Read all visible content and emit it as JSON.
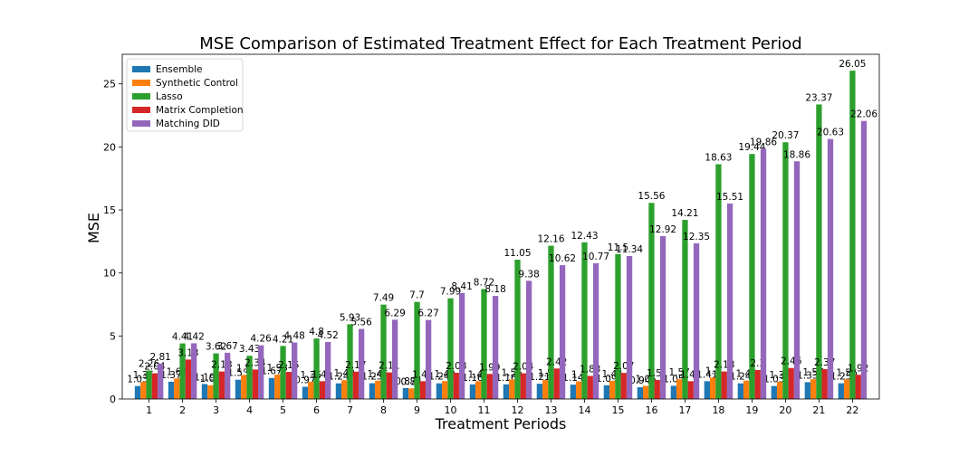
{
  "chart_data": {
    "type": "bar",
    "title": "MSE Comparison of Estimated Treatment Effect for Each Treatment Period",
    "xlabel": "Treatment Periods",
    "ylabel": "MSE",
    "ylim": [
      0,
      27.35
    ],
    "yticks": [
      0,
      5,
      10,
      15,
      20,
      25
    ],
    "grid": false,
    "legend_position": "top-left",
    "categories": [
      "1",
      "2",
      "3",
      "4",
      "5",
      "6",
      "7",
      "8",
      "9",
      "10",
      "11",
      "12",
      "13",
      "14",
      "15",
      "16",
      "17",
      "18",
      "19",
      "20",
      "21",
      "22"
    ],
    "series": [
      {
        "name": "Ensemble",
        "color": "#1f77b4",
        "values": [
          1.03,
          1.37,
          1.19,
          1.53,
          1.67,
          0.97,
          1.24,
          1.25,
          0.87,
          1.24,
          1.16,
          1.16,
          1.21,
          1.14,
          1.09,
          0.94,
          1.05,
          1.41,
          1.24,
          1.03,
          1.33,
          1.25
        ]
      },
      {
        "name": "Synthetic Control",
        "color": "#ff7f0e",
        "values": [
          1.36,
          1.63,
          1.09,
          1.9,
          1.93,
          1.36,
          1.49,
          1.45,
          0.84,
          1.42,
          1.41,
          1.55,
          1.5,
          1.4,
          1.44,
          1.05,
          1.57,
          1.7,
          1.46,
          1.37,
          1.57,
          1.56
        ]
      },
      {
        "name": "Lasso",
        "color": "#2ca02c",
        "values": [
          2.26,
          4.41,
          3.62,
          3.43,
          4.21,
          4.8,
          5.93,
          7.49,
          7.7,
          7.99,
          8.72,
          11.05,
          12.16,
          12.43,
          11.5,
          15.56,
          14.21,
          18.63,
          19.44,
          20.37,
          23.37,
          26.05
        ]
      },
      {
        "name": "Matrix Completion",
        "color": "#d62728",
        "values": [
          2.04,
          3.13,
          2.18,
          2.34,
          2.15,
          1.41,
          2.17,
          2.11,
          1.41,
          2.08,
          1.99,
          2.04,
          2.42,
          1.83,
          2.07,
          1.51,
          1.41,
          2.18,
          2.3,
          2.46,
          2.37,
          1.92
        ]
      },
      {
        "name": "Matching DID",
        "color": "#9467bd",
        "values": [
          2.81,
          4.42,
          3.67,
          4.26,
          4.48,
          4.52,
          5.56,
          6.29,
          6.27,
          8.41,
          8.18,
          9.38,
          10.62,
          10.77,
          11.34,
          12.92,
          12.35,
          15.51,
          19.86,
          18.86,
          20.63,
          22.06
        ]
      }
    ]
  }
}
